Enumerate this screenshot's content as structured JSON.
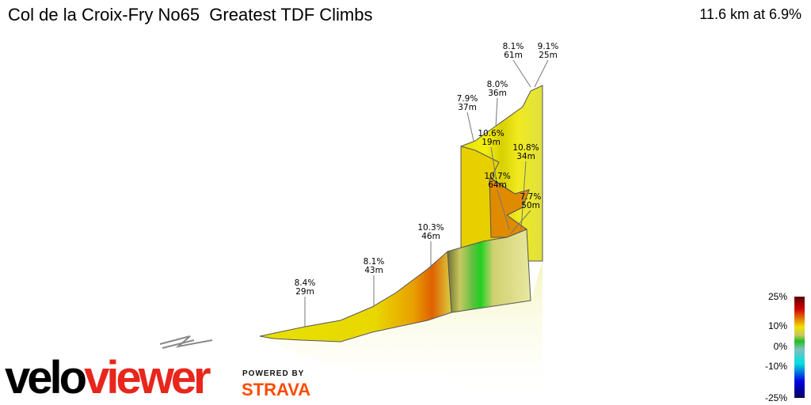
{
  "header": {
    "title": "Col de la Croix-Fry No65  Greatest TDF Climbs",
    "summary": "11.6 km at 6.9%"
  },
  "chart_data": {
    "type": "area",
    "title": "Col de la Croix-Fry No65  Greatest TDF Climbs",
    "distance_km": 11.6,
    "avg_gradient_pct": 6.9,
    "annotations": [
      {
        "grade": "8.4%",
        "length": "29m"
      },
      {
        "grade": "8.1%",
        "length": "43m"
      },
      {
        "grade": "10.3%",
        "length": "46m"
      },
      {
        "grade": "7.9%",
        "length": "37m"
      },
      {
        "grade": "8.0%",
        "length": "36m"
      },
      {
        "grade": "10.6%",
        "length": "19m"
      },
      {
        "grade": "10.8%",
        "length": "34m"
      },
      {
        "grade": "10.7%",
        "length": "64m"
      },
      {
        "grade": "7.7%",
        "length": "50m"
      },
      {
        "grade": "8.1%",
        "length": "61m"
      },
      {
        "grade": "9.1%",
        "length": "25m"
      }
    ],
    "color_scale": {
      "ticks": [
        "25%",
        "10%",
        "0%",
        "-10%",
        "-25%"
      ],
      "colors": [
        "#5a0000",
        "#e00000",
        "#f0e000",
        "#20c020",
        "#00e0e0",
        "#0000e0",
        "#000060"
      ]
    }
  },
  "branding": {
    "logo_a": "velo",
    "logo_b": "viewer",
    "powered": "POWERED BY",
    "strava": "STRAVA"
  }
}
